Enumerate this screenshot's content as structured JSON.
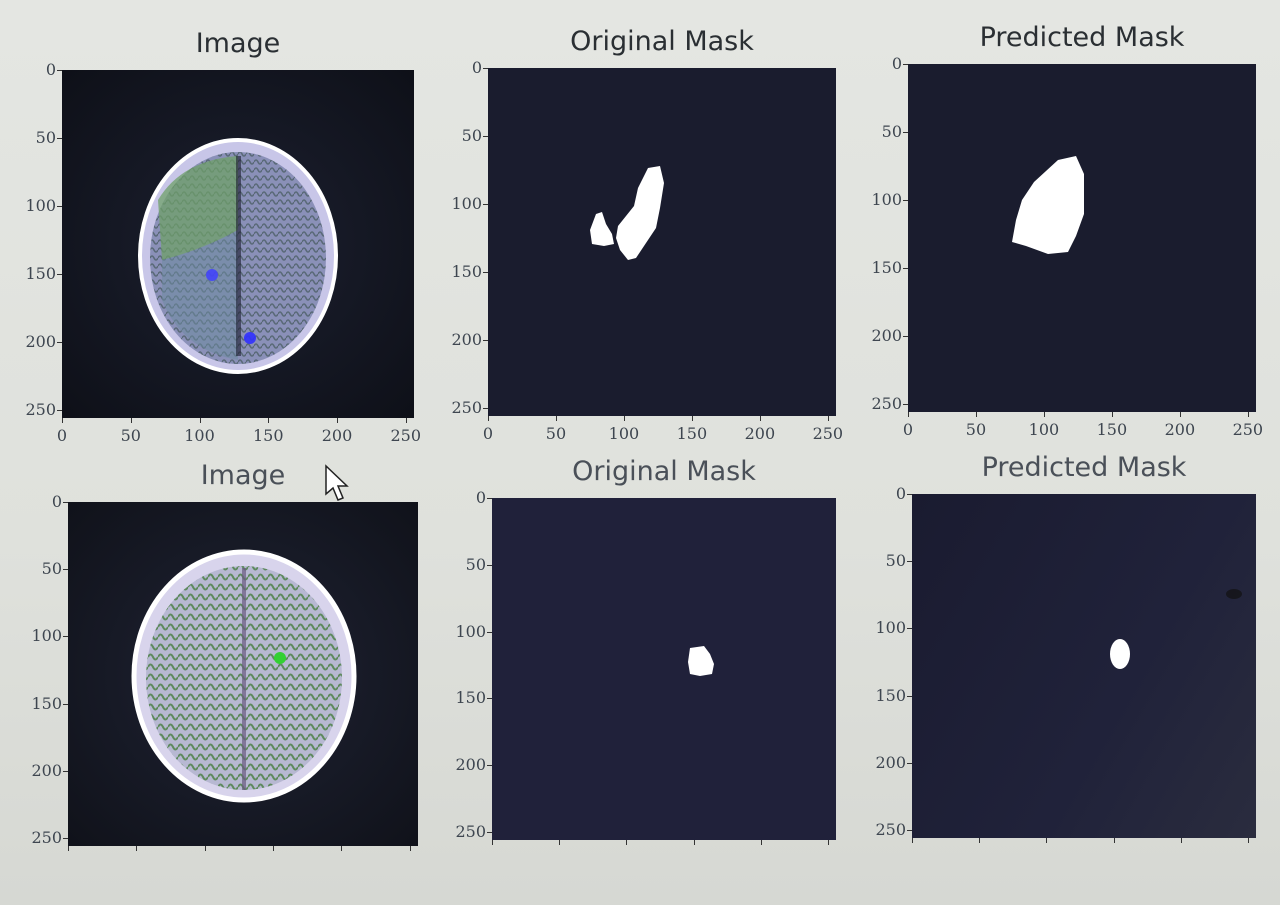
{
  "figure": {
    "row1": {
      "image_title": "Image",
      "original_title": "Original Mask",
      "predicted_title": "Predicted Mask"
    },
    "row2": {
      "image_title": "Image",
      "original_title": "Original Mask",
      "predicted_title": "Predicted Mask"
    },
    "axis_ticks": {
      "y": [
        "0",
        "50",
        "100",
        "150",
        "200",
        "250"
      ],
      "x": [
        "0",
        "50",
        "100",
        "150",
        "200",
        "250"
      ]
    }
  },
  "colors": {
    "plot_background": "#1a1c2e",
    "mask_foreground": "#ffffff",
    "screen_background": "#e2e4df"
  }
}
